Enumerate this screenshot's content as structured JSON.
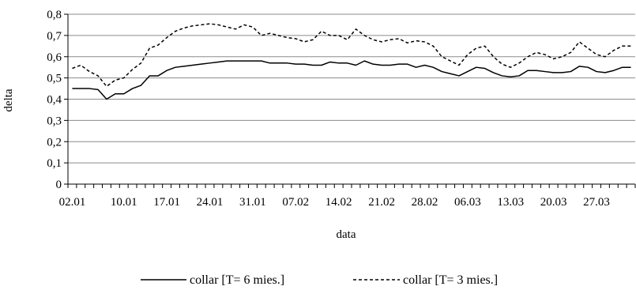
{
  "chart_data": {
    "type": "line",
    "xlabel": "data",
    "ylabel": "delta",
    "ylim": [
      0,
      0.8
    ],
    "y_ticks": [
      "0",
      "0,1",
      "0,2",
      "0,3",
      "0,4",
      "0,5",
      "0,6",
      "0,7",
      "0,8"
    ],
    "y_tick_values": [
      0,
      0.1,
      0.2,
      0.3,
      0.4,
      0.5,
      0.6,
      0.7,
      0.8
    ],
    "x_tick_labels": [
      "02.01",
      "10.01",
      "17.01",
      "24.01",
      "31.01",
      "07.02",
      "14.02",
      "21.02",
      "28.02",
      "06.03",
      "13.03",
      "20.03",
      "27.03"
    ],
    "x_tick_indices": [
      0,
      6,
      11,
      16,
      21,
      26,
      31,
      36,
      41,
      46,
      51,
      56,
      61
    ],
    "grid": "horizontal",
    "legend_position": "bottom",
    "series": [
      {
        "name": "collar [T= 6 mies.]",
        "style": "solid",
        "values": [
          0.45,
          0.45,
          0.45,
          0.445,
          0.4,
          0.425,
          0.425,
          0.45,
          0.465,
          0.51,
          0.51,
          0.535,
          0.55,
          0.555,
          0.56,
          0.565,
          0.57,
          0.575,
          0.58,
          0.58,
          0.58,
          0.58,
          0.58,
          0.57,
          0.57,
          0.57,
          0.565,
          0.565,
          0.56,
          0.56,
          0.575,
          0.57,
          0.57,
          0.56,
          0.58,
          0.565,
          0.56,
          0.56,
          0.565,
          0.565,
          0.55,
          0.56,
          0.55,
          0.53,
          0.52,
          0.51,
          0.53,
          0.55,
          0.545,
          0.525,
          0.51,
          0.505,
          0.51,
          0.535,
          0.535,
          0.53,
          0.525,
          0.525,
          0.53,
          0.555,
          0.55,
          0.53,
          0.525,
          0.535,
          0.55,
          0.55
        ]
      },
      {
        "name": "collar [T= 3 mies.]",
        "style": "dashed",
        "values": [
          0.545,
          0.56,
          0.53,
          0.51,
          0.46,
          0.49,
          0.5,
          0.54,
          0.57,
          0.64,
          0.655,
          0.69,
          0.72,
          0.735,
          0.745,
          0.75,
          0.755,
          0.75,
          0.74,
          0.73,
          0.75,
          0.74,
          0.7,
          0.71,
          0.7,
          0.69,
          0.685,
          0.67,
          0.68,
          0.72,
          0.7,
          0.7,
          0.68,
          0.73,
          0.7,
          0.68,
          0.67,
          0.68,
          0.685,
          0.665,
          0.675,
          0.67,
          0.65,
          0.6,
          0.58,
          0.56,
          0.61,
          0.64,
          0.65,
          0.6,
          0.565,
          0.55,
          0.57,
          0.6,
          0.62,
          0.61,
          0.59,
          0.6,
          0.62,
          0.67,
          0.64,
          0.61,
          0.6,
          0.63,
          0.65,
          0.65
        ]
      }
    ]
  }
}
